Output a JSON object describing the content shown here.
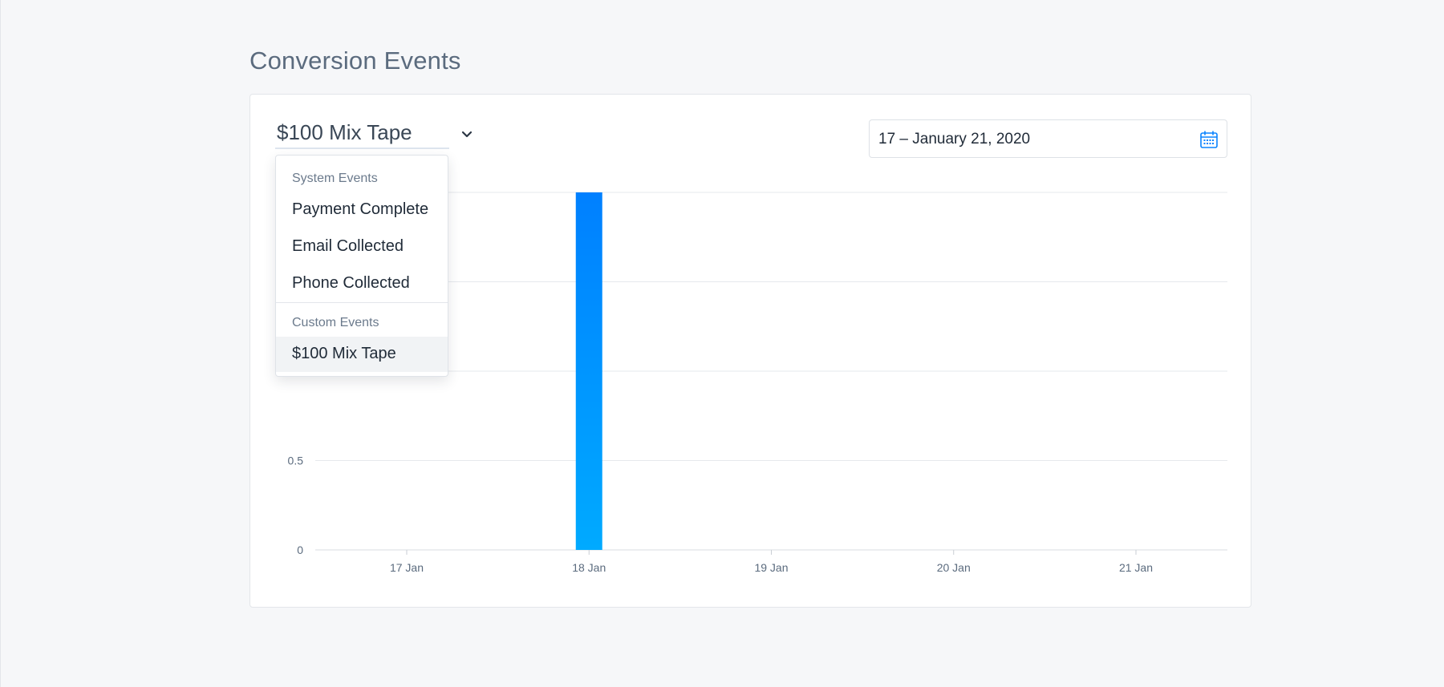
{
  "page": {
    "title": "Conversion Events"
  },
  "event_selector": {
    "selected": "$100 Mix Tape",
    "icon": "chevron-down-icon"
  },
  "date_range": {
    "value": "17 – January 21, 2020",
    "icon": "calendar-icon"
  },
  "dropdown": {
    "groups": [
      {
        "label": "System Events",
        "items": [
          "Payment Complete",
          "Email Collected",
          "Phone Collected"
        ]
      },
      {
        "label": "Custom Events",
        "items": [
          "$100 Mix Tape"
        ]
      }
    ],
    "selected_item": "$100 Mix Tape"
  },
  "colors": {
    "accent": "#0a84ff",
    "bar_top": "#0080ff",
    "bar_bottom": "#00aaff",
    "grid": "#e6e9ed",
    "card_border": "#e3e6ea"
  },
  "chart_data": {
    "type": "bar",
    "categories": [
      "17 Jan",
      "18 Jan",
      "19 Jan",
      "20 Jan",
      "21 Jan"
    ],
    "values": [
      0,
      2,
      0,
      0,
      0
    ],
    "yticks_visible": [
      0,
      0.5
    ],
    "ylim": [
      0,
      2
    ],
    "grid": true,
    "legend": "none"
  }
}
